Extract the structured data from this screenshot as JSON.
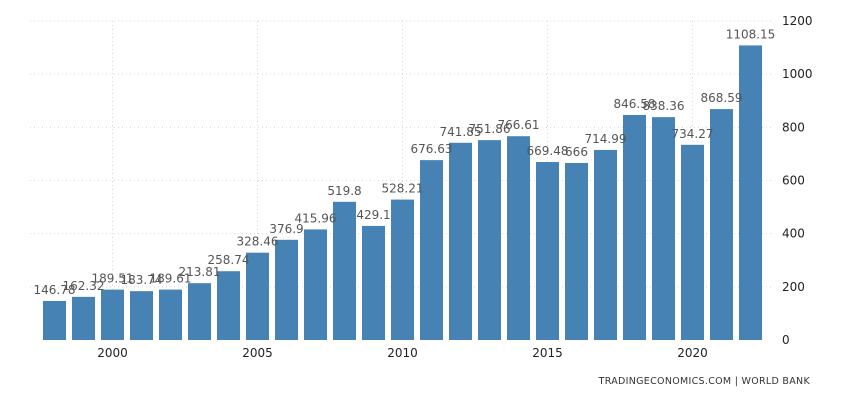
{
  "chart_data": {
    "type": "bar",
    "x": [
      1998,
      1999,
      2000,
      2001,
      2002,
      2003,
      2004,
      2005,
      2006,
      2007,
      2008,
      2009,
      2010,
      2011,
      2012,
      2013,
      2014,
      2015,
      2016,
      2017,
      2018,
      2019,
      2020,
      2021,
      2022
    ],
    "values": [
      146.78,
      162.32,
      189.51,
      183.74,
      189.61,
      213.81,
      258.74,
      328.46,
      376.9,
      415.96,
      519.8,
      429.1,
      528.21,
      676.63,
      741.85,
      751.86,
      766.61,
      669.48,
      666,
      714.99,
      846.58,
      838.36,
      734.27,
      868.59,
      1108.15
    ],
    "data_labels": [
      "146.78",
      "162.32",
      "189.51",
      "183.74",
      "189.61",
      "213.81",
      "258.74",
      "328.46",
      "376.9",
      "415.96",
      "519.8",
      "429.1",
      "528.21",
      "676.63",
      "741.85",
      "751.86",
      "766.61",
      "669.48",
      "666",
      "714.99",
      "846.58",
      "838.36",
      "734.27",
      "868.59",
      "1108.15"
    ],
    "x_tick_labels": [
      "2000",
      "2005",
      "2010",
      "2015",
      "2020"
    ],
    "x_tick_values": [
      2000,
      2005,
      2010,
      2015,
      2020
    ],
    "y_tick_labels": [
      "0",
      "200",
      "400",
      "600",
      "800",
      "1000",
      "1200"
    ],
    "ylim": [
      0,
      1200
    ],
    "y_axis_side": "right",
    "grid": true,
    "bar_color": "#4682b4",
    "title": "",
    "xlabel": "",
    "ylabel": ""
  },
  "source_text": "TRADINGECONOMICS.COM | WORLD BANK"
}
